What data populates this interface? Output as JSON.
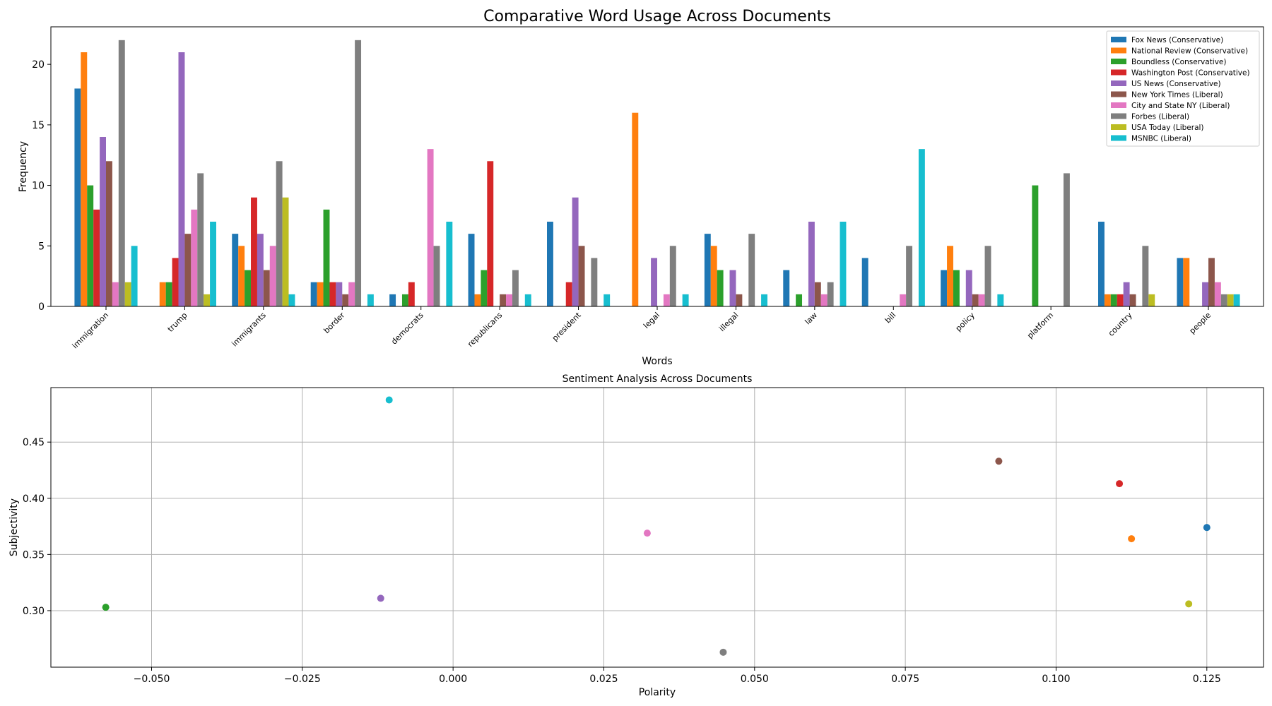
{
  "colors": {
    "axis": "#000000",
    "grid": "#b0b0b0",
    "series": [
      "#1f77b4",
      "#ff7f0e",
      "#2ca02c",
      "#d62728",
      "#9467bd",
      "#8c564b",
      "#e377c2",
      "#7f7f7f",
      "#bcbd22",
      "#17becf"
    ]
  },
  "chart_data": [
    {
      "type": "bar",
      "title": "Comparative Word Usage Across Documents",
      "xlabel": "Words",
      "ylabel": "Frequency",
      "ylim": [
        0,
        23.1
      ],
      "yticks": [
        0,
        5,
        10,
        15,
        20
      ],
      "grid": false,
      "legend": "top-right",
      "categories": [
        "immigration",
        "trump",
        "immigrants",
        "border",
        "democrats",
        "republicans",
        "president",
        "legal",
        "illegal",
        "law",
        "bill",
        "policy",
        "platform",
        "country",
        "people"
      ],
      "series": [
        {
          "name": "Fox News (Conservative)",
          "values": [
            18,
            0,
            6,
            2,
            1,
            6,
            7,
            0,
            6,
            3,
            4,
            3,
            0,
            7,
            4
          ]
        },
        {
          "name": "National Review (Conservative)",
          "values": [
            21,
            2,
            5,
            2,
            0,
            1,
            0,
            16,
            5,
            0,
            0,
            5,
            0,
            1,
            4
          ]
        },
        {
          "name": "Boundless (Conservative)",
          "values": [
            10,
            2,
            3,
            8,
            1,
            3,
            0,
            0,
            3,
            1,
            0,
            3,
            10,
            1,
            0
          ]
        },
        {
          "name": "Washington Post (Conservative)",
          "values": [
            8,
            4,
            9,
            2,
            2,
            12,
            2,
            0,
            0,
            0,
            0,
            0,
            0,
            1,
            0
          ]
        },
        {
          "name": "US News (Conservative)",
          "values": [
            14,
            21,
            6,
            2,
            0,
            0,
            9,
            4,
            3,
            7,
            0,
            3,
            0,
            2,
            2
          ]
        },
        {
          "name": "New York Times (Liberal)",
          "values": [
            12,
            6,
            3,
            1,
            0,
            1,
            5,
            0,
            1,
            2,
            0,
            1,
            0,
            1,
            4
          ]
        },
        {
          "name": "City and State NY (Liberal)",
          "values": [
            2,
            8,
            5,
            2,
            13,
            1,
            0,
            1,
            0,
            1,
            1,
            1,
            0,
            0,
            2
          ]
        },
        {
          "name": "Forbes (Liberal)",
          "values": [
            22,
            11,
            12,
            22,
            5,
            3,
            4,
            5,
            6,
            2,
            5,
            5,
            11,
            5,
            1
          ]
        },
        {
          "name": "USA Today (Liberal)",
          "values": [
            2,
            1,
            9,
            0,
            0,
            0,
            0,
            0,
            0,
            0,
            0,
            0,
            0,
            1,
            1
          ]
        },
        {
          "name": "MSNBC (Liberal)",
          "values": [
            5,
            7,
            1,
            1,
            7,
            1,
            1,
            1,
            1,
            7,
            13,
            1,
            0,
            0,
            1
          ]
        }
      ]
    },
    {
      "type": "scatter",
      "title": "Sentiment Analysis Across Documents",
      "xlabel": "Polarity",
      "ylabel": "Subjectivity",
      "xlim": [
        -0.0667,
        0.1344
      ],
      "ylim": [
        0.2497,
        0.4985
      ],
      "xticks": [
        "-0.050",
        "-0.025",
        "0.000",
        "0.025",
        "0.050",
        "0.075",
        "0.100",
        "0.125"
      ],
      "yticks": [
        "0.30",
        "0.35",
        "0.40",
        "0.45"
      ],
      "grid": true,
      "points": [
        {
          "x": 0.125,
          "y": 0.374
        },
        {
          "x": 0.1125,
          "y": 0.364
        },
        {
          "x": -0.0576,
          "y": 0.303
        },
        {
          "x": 0.1105,
          "y": 0.413
        },
        {
          "x": -0.012,
          "y": 0.311
        },
        {
          "x": 0.0905,
          "y": 0.433
        },
        {
          "x": 0.0322,
          "y": 0.369
        },
        {
          "x": 0.0448,
          "y": 0.263
        },
        {
          "x": 0.122,
          "y": 0.306
        },
        {
          "x": -0.0106,
          "y": 0.4875
        }
      ]
    }
  ]
}
